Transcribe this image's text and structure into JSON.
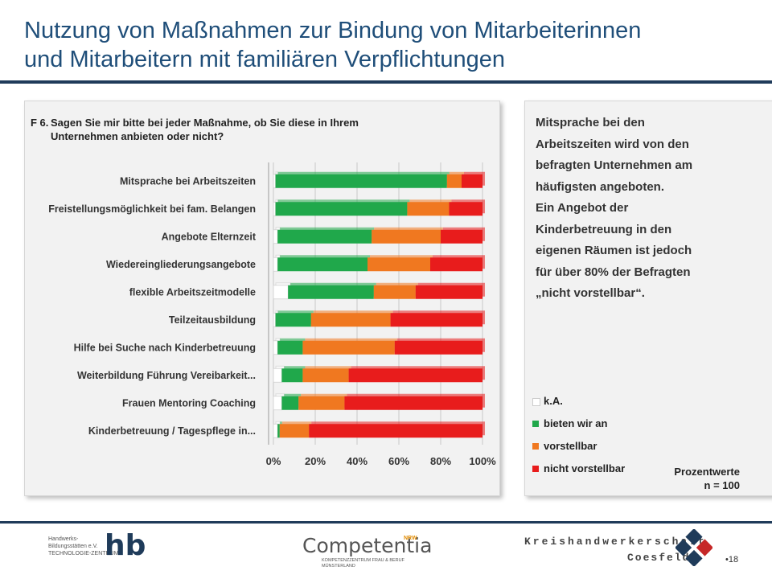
{
  "title_line1": "Nutzung von Maßnahmen zur Bindung von Mitarbeiterinnen",
  "title_line2": "und Mitarbeitern mit familiären Verpflichtungen",
  "question": {
    "number": "F 6.",
    "line1": "Sagen Sie mir bitte bei jeder Maßnahme, ob Sie diese in Ihrem",
    "line2": "Unternehmen anbieten oder nicht?"
  },
  "explanation": [
    "Mitsprache bei den",
    "Arbeitszeiten wird von den",
    "befragten Unternehmen am",
    "häufigsten angeboten.",
    "Ein Angebot der",
    "Kinderbetreuung in den",
    "eigenen Räumen ist jedoch",
    "für über 80% der Befragten",
    "„nicht vorstellbar“."
  ],
  "note": {
    "line1": "Prozentwerte",
    "line2": "n = 100"
  },
  "colors": {
    "ka": "#ffffff",
    "bieten": "#20a84b",
    "vorstellbar": "#f07820",
    "nicht": "#e81c1c",
    "title": "#1f4e79",
    "rule": "#1f3b5a"
  },
  "chart_data": {
    "type": "bar",
    "orientation": "horizontal",
    "stacked": true,
    "title": "",
    "xlabel": "",
    "ylabel": "",
    "xlim": [
      0,
      100
    ],
    "x_ticks": [
      "0%",
      "20%",
      "40%",
      "60%",
      "80%",
      "100%"
    ],
    "categories": [
      "Mitsprache bei Arbeitszeiten",
      "Freistellungsmöglichkeit bei fam. Belangen",
      "Angebote Elternzeit",
      "Wiedereingliederungsangebote",
      "flexible Arbeitszeitmodelle",
      "Teilzeitausbildung",
      "Hilfe bei Suche nach Kinderbetreuung",
      "Weiterbildung Führung Vereibarkeit...",
      "Frauen Mentoring Coaching",
      "Kinderbetreuung / Tagespflege in..."
    ],
    "series": [
      {
        "name": "k.A.",
        "color_key": "ka",
        "values": [
          1,
          1,
          2,
          2,
          7,
          1,
          2,
          4,
          4,
          2
        ]
      },
      {
        "name": "bieten wir an",
        "color_key": "bieten",
        "values": [
          82,
          63,
          45,
          43,
          41,
          17,
          12,
          10,
          8,
          1
        ]
      },
      {
        "name": "vorstellbar",
        "color_key": "vorstellbar",
        "values": [
          7,
          20,
          33,
          30,
          20,
          38,
          44,
          22,
          22,
          14
        ]
      },
      {
        "name": "nicht vorstellbar",
        "color_key": "nicht",
        "values": [
          10,
          16,
          20,
          25,
          32,
          44,
          42,
          64,
          66,
          83
        ]
      }
    ],
    "legend": [
      "k.A.",
      "bieten wir an",
      "vorstellbar",
      "nicht vorstellbar"
    ],
    "legend_position": "right"
  },
  "footer": {
    "hb_text": [
      "Handwerks-",
      "Bildungsstätten e.V.",
      "TECHNOLOGIE-ZENTRUM"
    ],
    "hb_mark": "hb",
    "comp_name": "Competentia",
    "comp_nrw": "NRW",
    "comp_sub": [
      "KOMPETENZZENTRUM FRAU & BERUF",
      "MÜNSTERLAND"
    ],
    "kh_name": "Kreishandwerkerschaft",
    "kh_place": "Coesfeld",
    "page_number": "•18"
  }
}
